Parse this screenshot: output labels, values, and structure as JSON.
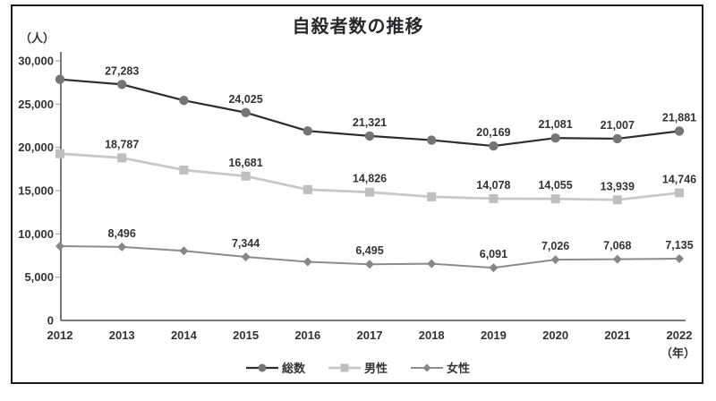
{
  "title": "自殺者数の推移",
  "y_axis": {
    "unit_label": "（人）"
  },
  "x_axis": {
    "unit_label": "（年）"
  },
  "colors": {
    "frame_border": "#1a1a1a",
    "axis_line": "#4d4d4d",
    "tick_mark": "#9a9a9a",
    "label_text": "#333333",
    "title_text": "#26262b"
  },
  "chart_data": {
    "type": "line",
    "title": "自殺者数の推移",
    "xlabel": "（年）",
    "ylabel": "（人）",
    "categories": [
      "2012",
      "2013",
      "2014",
      "2015",
      "2016",
      "2017",
      "2018",
      "2019",
      "2020",
      "2021",
      "2022"
    ],
    "ylim": [
      0,
      30000
    ],
    "y_tick_step": 5000,
    "y_tick_labels": [
      "0",
      "5,000",
      "10,000",
      "15,000",
      "20,000",
      "25,000",
      "30,000"
    ],
    "grid": false,
    "legend_position": "bottom",
    "series": [
      {
        "key": "total",
        "name": "総数",
        "marker": "circle",
        "line_color": "#2d2d2d",
        "marker_color": "#757575",
        "line_width": 2.2,
        "values": [
          27858,
          27283,
          25427,
          24025,
          21897,
          21321,
          20840,
          20169,
          21081,
          21007,
          21881
        ],
        "point_labels": [
          null,
          "27,283",
          null,
          "24,025",
          null,
          "21,321",
          null,
          "20,169",
          "21,081",
          "21,007",
          "21,881"
        ]
      },
      {
        "key": "male",
        "name": "男性",
        "marker": "square",
        "line_color": "#c8c8c8",
        "marker_color": "#bfbfbf",
        "line_width": 2.8,
        "values": [
          19273,
          18787,
          17386,
          16681,
          15121,
          14826,
          14290,
          14078,
          14055,
          13939,
          14746
        ],
        "point_labels": [
          null,
          "18,787",
          null,
          "16,681",
          null,
          "14,826",
          null,
          "14,078",
          "14,055",
          "13,939",
          "14,746"
        ]
      },
      {
        "key": "female",
        "name": "女性",
        "marker": "diamond",
        "line_color": "#8c8c8c",
        "marker_color": "#878787",
        "line_width": 2,
        "values": [
          8585,
          8496,
          8041,
          7344,
          6776,
          6495,
          6550,
          6091,
          7026,
          7068,
          7135
        ],
        "point_labels": [
          null,
          "8,496",
          null,
          "7,344",
          null,
          "6,495",
          null,
          "6,091",
          "7,026",
          "7,068",
          "7,135"
        ]
      }
    ]
  }
}
